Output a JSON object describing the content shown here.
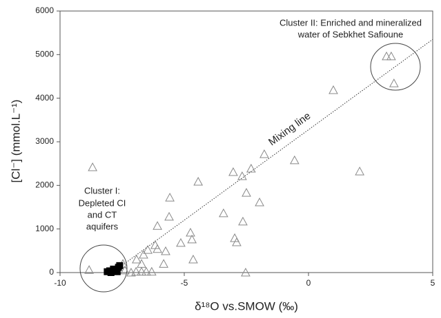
{
  "chart_data": {
    "type": "scatter",
    "xlabel": "δ¹⁸O vs.SMOW (‰)",
    "ylabel": "[Cl⁻] (mmol.L⁻¹)",
    "xlim": [
      -10,
      5
    ],
    "xticks": [
      -10,
      -5,
      0,
      5
    ],
    "ylim": [
      0,
      6000
    ],
    "yticks": [
      0,
      1000,
      2000,
      3000,
      4000,
      5000,
      6000
    ],
    "series": [
      {
        "marker": "open-triangle",
        "color": "#888888",
        "x": [
          -8.83,
          -8.69,
          -7.47,
          -7.39,
          -7.14,
          -6.94,
          -6.72,
          -6.53,
          -6.31,
          -6.92,
          -6.72,
          -6.47,
          -6.64,
          -6.17,
          -6.08,
          -6.08,
          -5.83,
          -5.75,
          -5.61,
          -5.58,
          -5.14,
          -4.75,
          -4.69,
          -4.64,
          -4.44,
          -3.42,
          -3.03,
          -2.97,
          -2.89,
          -2.67,
          -2.64,
          -2.53,
          -2.5,
          -2.31,
          -1.97,
          -1.78,
          -0.56,
          1.0,
          2.06,
          3.14,
          3.33,
          3.44
        ],
        "values": [
          60,
          2415,
          200,
          50,
          0,
          20,
          20,
          20,
          20,
          300,
          200,
          520,
          410,
          630,
          540,
          1070,
          200,
          490,
          1280,
          1720,
          680,
          915,
          760,
          300,
          2085,
          1360,
          2305,
          790,
          695,
          2210,
          1170,
          0,
          1830,
          2385,
          1610,
          2715,
          2575,
          4185,
          2320,
          4960,
          4960,
          4340
        ]
      },
      {
        "marker": "filled-square",
        "color": "#000000",
        "x": [
          -8.1,
          -8.0,
          -7.95,
          -7.9,
          -7.85,
          -7.75,
          -7.7,
          -7.65,
          -7.6
        ],
        "values": [
          20,
          40,
          0,
          30,
          80,
          60,
          20,
          120,
          160
        ]
      }
    ],
    "mixing_line": {
      "label": "Mixing line",
      "x": [
        -7.9,
        5
      ],
      "y": [
        0,
        5350
      ]
    },
    "annotations": [
      {
        "lines": [
          "Cluster II: Enriched and mineralized",
          "water of Sebkhet Safioune"
        ]
      },
      {
        "lines": [
          "Cluster I:",
          "Depleted CI",
          "and CT",
          "aquifers"
        ]
      }
    ]
  }
}
